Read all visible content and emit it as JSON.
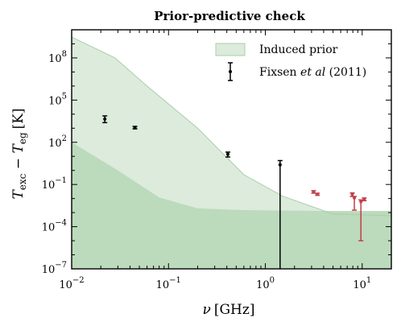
{
  "chart_data": {
    "type": "area",
    "title": "Prior-predictive check",
    "xlabel": {
      "main": "ν",
      "unit": "[GHz]"
    },
    "ylabel": {
      "main": "T",
      "sub1": "exc",
      "mid": " − T",
      "sub2": "eg",
      "unit": "[K]"
    },
    "xscale": "log",
    "yscale": "log",
    "xlim": [
      0.01,
      20
    ],
    "ylim": [
      1e-07,
      10000000000.0
    ],
    "x_ticks": [
      {
        "value": 0.01,
        "base": "10",
        "exp": "−2"
      },
      {
        "value": 0.1,
        "base": "10",
        "exp": "−1"
      },
      {
        "value": 1,
        "base": "10",
        "exp": "0"
      },
      {
        "value": 10,
        "base": "10",
        "exp": "1"
      }
    ],
    "y_ticks": [
      {
        "value": 1e-07,
        "base": "10",
        "exp": "−7"
      },
      {
        "value": 0.0001,
        "base": "10",
        "exp": "−4"
      },
      {
        "value": 0.1,
        "base": "10",
        "exp": "−1"
      },
      {
        "value": 100,
        "base": "10",
        "exp": "2"
      },
      {
        "value": 100000.0,
        "base": "10",
        "exp": "5"
      },
      {
        "value": 100000000.0,
        "base": "10",
        "exp": "8"
      }
    ],
    "legend": {
      "position": "top-right",
      "entries": [
        {
          "kind": "area",
          "label": "Induced prior"
        },
        {
          "kind": "errorbar",
          "label_plain": "Fixsen ",
          "label_italic": "et al",
          "label_rest": " (2011)"
        }
      ]
    },
    "induced_prior": {
      "upper": [
        [
          0.01,
          3000000000.0
        ],
        [
          0.028,
          100000000.0
        ],
        [
          0.06,
          1000000.0
        ],
        [
          0.2,
          1000.0
        ],
        [
          0.6,
          0.5
        ],
        [
          1.5,
          0.015
        ],
        [
          5,
          0.0008
        ],
        [
          20,
          0.0006
        ]
      ],
      "lower": [
        [
          0.01,
          100.0
        ],
        [
          0.03,
          1.0
        ],
        [
          0.08,
          0.012
        ],
        [
          0.2,
          0.002
        ],
        [
          0.6,
          0.0015
        ],
        [
          1.5,
          0.0014
        ],
        [
          5,
          0.0013
        ],
        [
          20,
          0.0013
        ]
      ],
      "outer_color": "#dcebdc",
      "inner_color": "#bcdabc",
      "edge_color": "#a8cfa8"
    },
    "fixsen_points": [
      {
        "x": 0.022,
        "y": 4500,
        "lo": 2500,
        "hi": 7500,
        "color": "#000000"
      },
      {
        "x": 0.045,
        "y": 1100,
        "lo": 900,
        "hi": 1350,
        "color": "#000000"
      },
      {
        "x": 0.41,
        "y": 14,
        "lo": 9,
        "hi": 20,
        "color": "#000000"
      },
      {
        "x": 1.42,
        "y": 2.5,
        "lo": 1e-07,
        "hi": 5,
        "color": "#000000"
      },
      {
        "x": 3.15,
        "y": 0.03,
        "lo": 0.024,
        "hi": 0.036,
        "color": "#c0404a"
      },
      {
        "x": 3.45,
        "y": 0.02,
        "lo": 0.017,
        "hi": 0.024,
        "color": "#c0404a"
      },
      {
        "x": 7.9,
        "y": 0.02,
        "lo": 0.014,
        "hi": 0.025,
        "color": "#c0404a"
      },
      {
        "x": 8.3,
        "y": 0.011,
        "lo": 0.0015,
        "hi": 0.014,
        "color": "#c0404a"
      },
      {
        "x": 9.7,
        "y": 0.006,
        "lo": 1e-05,
        "hi": 0.008,
        "color": "#c0404a"
      },
      {
        "x": 10.5,
        "y": 0.009,
        "lo": 0.007,
        "hi": 0.011,
        "color": "#c0404a"
      }
    ]
  }
}
